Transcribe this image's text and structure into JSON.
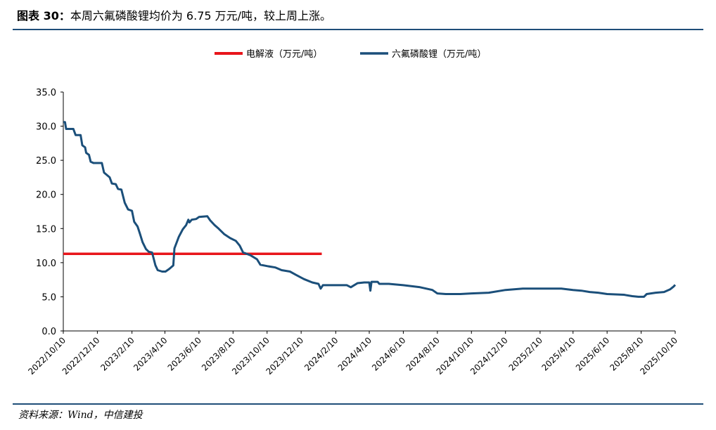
{
  "header": {
    "label": "图表 30：",
    "text": "本周六氟磷酸锂均价为 6.75 万元/吨，较上周上涨。"
  },
  "footer": {
    "source": "资料来源：Wind，中信建投"
  },
  "colors": {
    "electrolyte": "#e8151b",
    "lipf6": "#1b4f7a",
    "rule": "#1f4e79"
  },
  "chart_data": {
    "type": "line",
    "title": "",
    "xlabel": "",
    "ylabel": "",
    "ylim": [
      0,
      35
    ],
    "yticks": [
      "0.0",
      "5.0",
      "10.0",
      "15.0",
      "20.0",
      "25.0",
      "30.0",
      "35.0"
    ],
    "x_tick_labels": [
      "2022/10/10",
      "2022/12/10",
      "2023/2/10",
      "2023/4/10",
      "2023/6/10",
      "2023/8/10",
      "2023/10/10",
      "2023/12/10",
      "2024/2/10",
      "2024/4/10",
      "2024/6/10",
      "2024/8/10",
      "2024/10/10",
      "2024/12/10",
      "2025/2/10",
      "2025/4/10",
      "2025/6/10",
      "2025/8/10",
      "2025/10/10"
    ],
    "grid": false,
    "legend_position": "top",
    "series": [
      {
        "name": "电解液（万元/吨）",
        "color": "#e8151b",
        "points": [
          [
            "2022/10/10",
            11.3
          ],
          [
            "2024/1/16",
            11.3
          ]
        ]
      },
      {
        "name": "六氟磷酸锂（万元/吨）",
        "color": "#1b4f7a",
        "points": [
          [
            "2022/10/10",
            30.6
          ],
          [
            "2022/10/13",
            30.6
          ],
          [
            "2022/10/15",
            29.6
          ],
          [
            "2022/10/28",
            29.6
          ],
          [
            "2022/11/1",
            28.7
          ],
          [
            "2022/11/10",
            28.7
          ],
          [
            "2022/11/13",
            27.2
          ],
          [
            "2022/11/18",
            26.9
          ],
          [
            "2022/11/20",
            26.1
          ],
          [
            "2022/11/25",
            25.8
          ],
          [
            "2022/11/28",
            24.8
          ],
          [
            "2022/12/3",
            24.6
          ],
          [
            "2022/12/18",
            24.6
          ],
          [
            "2022/12/22",
            23.2
          ],
          [
            "2023/1/1",
            22.5
          ],
          [
            "2023/1/5",
            21.6
          ],
          [
            "2023/1/12",
            21.5
          ],
          [
            "2023/1/16",
            20.8
          ],
          [
            "2023/1/22",
            20.7
          ],
          [
            "2023/1/28",
            18.8
          ],
          [
            "2023/2/3",
            17.8
          ],
          [
            "2023/2/10",
            17.6
          ],
          [
            "2023/2/14",
            16.0
          ],
          [
            "2023/2/20",
            15.3
          ],
          [
            "2023/2/24",
            14.3
          ],
          [
            "2023/3/1",
            13.0
          ],
          [
            "2023/3/7",
            12.0
          ],
          [
            "2023/3/12",
            11.6
          ],
          [
            "2023/3/18",
            11.5
          ],
          [
            "2023/3/24",
            9.6
          ],
          [
            "2023/3/28",
            8.9
          ],
          [
            "2023/4/5",
            8.7
          ],
          [
            "2023/4/11",
            8.7
          ],
          [
            "2023/4/18",
            9.1
          ],
          [
            "2023/4/25",
            9.6
          ],
          [
            "2023/4/27",
            12.1
          ],
          [
            "2023/5/5",
            13.8
          ],
          [
            "2023/5/12",
            14.9
          ],
          [
            "2023/5/18",
            15.5
          ],
          [
            "2023/5/22",
            16.3
          ],
          [
            "2023/5/24",
            15.9
          ],
          [
            "2023/5/28",
            16.3
          ],
          [
            "2023/6/5",
            16.4
          ],
          [
            "2023/6/10",
            16.7
          ],
          [
            "2023/6/25",
            16.8
          ],
          [
            "2023/6/30",
            16.2
          ],
          [
            "2023/7/8",
            15.5
          ],
          [
            "2023/7/15",
            15.0
          ],
          [
            "2023/7/25",
            14.2
          ],
          [
            "2023/8/5",
            13.6
          ],
          [
            "2023/8/15",
            13.2
          ],
          [
            "2023/8/22",
            12.5
          ],
          [
            "2023/8/28",
            11.5
          ],
          [
            "2023/9/10",
            11.1
          ],
          [
            "2023/9/22",
            10.5
          ],
          [
            "2023/9/28",
            9.7
          ],
          [
            "2023/10/10",
            9.5
          ],
          [
            "2023/10/25",
            9.3
          ],
          [
            "2023/11/5",
            8.9
          ],
          [
            "2023/11/20",
            8.7
          ],
          [
            "2023/12/1",
            8.2
          ],
          [
            "2023/12/15",
            7.6
          ],
          [
            "2023/12/30",
            7.1
          ],
          [
            "2024/1/10",
            6.9
          ],
          [
            "2024/1/14",
            6.2
          ],
          [
            "2024/1/18",
            6.7
          ],
          [
            "2024/2/1",
            6.7
          ],
          [
            "2024/3/1",
            6.7
          ],
          [
            "2024/3/8",
            6.4
          ],
          [
            "2024/3/20",
            7.0
          ],
          [
            "2024/4/1",
            7.1
          ],
          [
            "2024/4/10",
            7.1
          ],
          [
            "2024/4/12",
            5.9
          ],
          [
            "2024/4/14",
            7.2
          ],
          [
            "2024/4/25",
            7.2
          ],
          [
            "2024/4/28",
            6.9
          ],
          [
            "2024/5/15",
            6.9
          ],
          [
            "2024/6/10",
            6.7
          ],
          [
            "2024/7/10",
            6.4
          ],
          [
            "2024/8/1",
            6.0
          ],
          [
            "2024/8/10",
            5.5
          ],
          [
            "2024/8/25",
            5.4
          ],
          [
            "2024/9/20",
            5.4
          ],
          [
            "2024/10/10",
            5.5
          ],
          [
            "2024/11/10",
            5.6
          ],
          [
            "2024/12/10",
            6.0
          ],
          [
            "2025/1/10",
            6.2
          ],
          [
            "2025/2/10",
            6.2
          ],
          [
            "2025/3/20",
            6.2
          ],
          [
            "2025/4/10",
            6.0
          ],
          [
            "2025/4/25",
            5.9
          ],
          [
            "2025/5/10",
            5.7
          ],
          [
            "2025/5/25",
            5.6
          ],
          [
            "2025/6/10",
            5.4
          ],
          [
            "2025/7/10",
            5.3
          ],
          [
            "2025/7/25",
            5.1
          ],
          [
            "2025/8/5",
            5.0
          ],
          [
            "2025/8/15",
            5.0
          ],
          [
            "2025/8/20",
            5.4
          ],
          [
            "2025/9/5",
            5.6
          ],
          [
            "2025/9/20",
            5.7
          ],
          [
            "2025/10/1",
            6.1
          ],
          [
            "2025/10/7",
            6.5
          ],
          [
            "2025/10/10",
            6.75
          ]
        ]
      }
    ]
  }
}
